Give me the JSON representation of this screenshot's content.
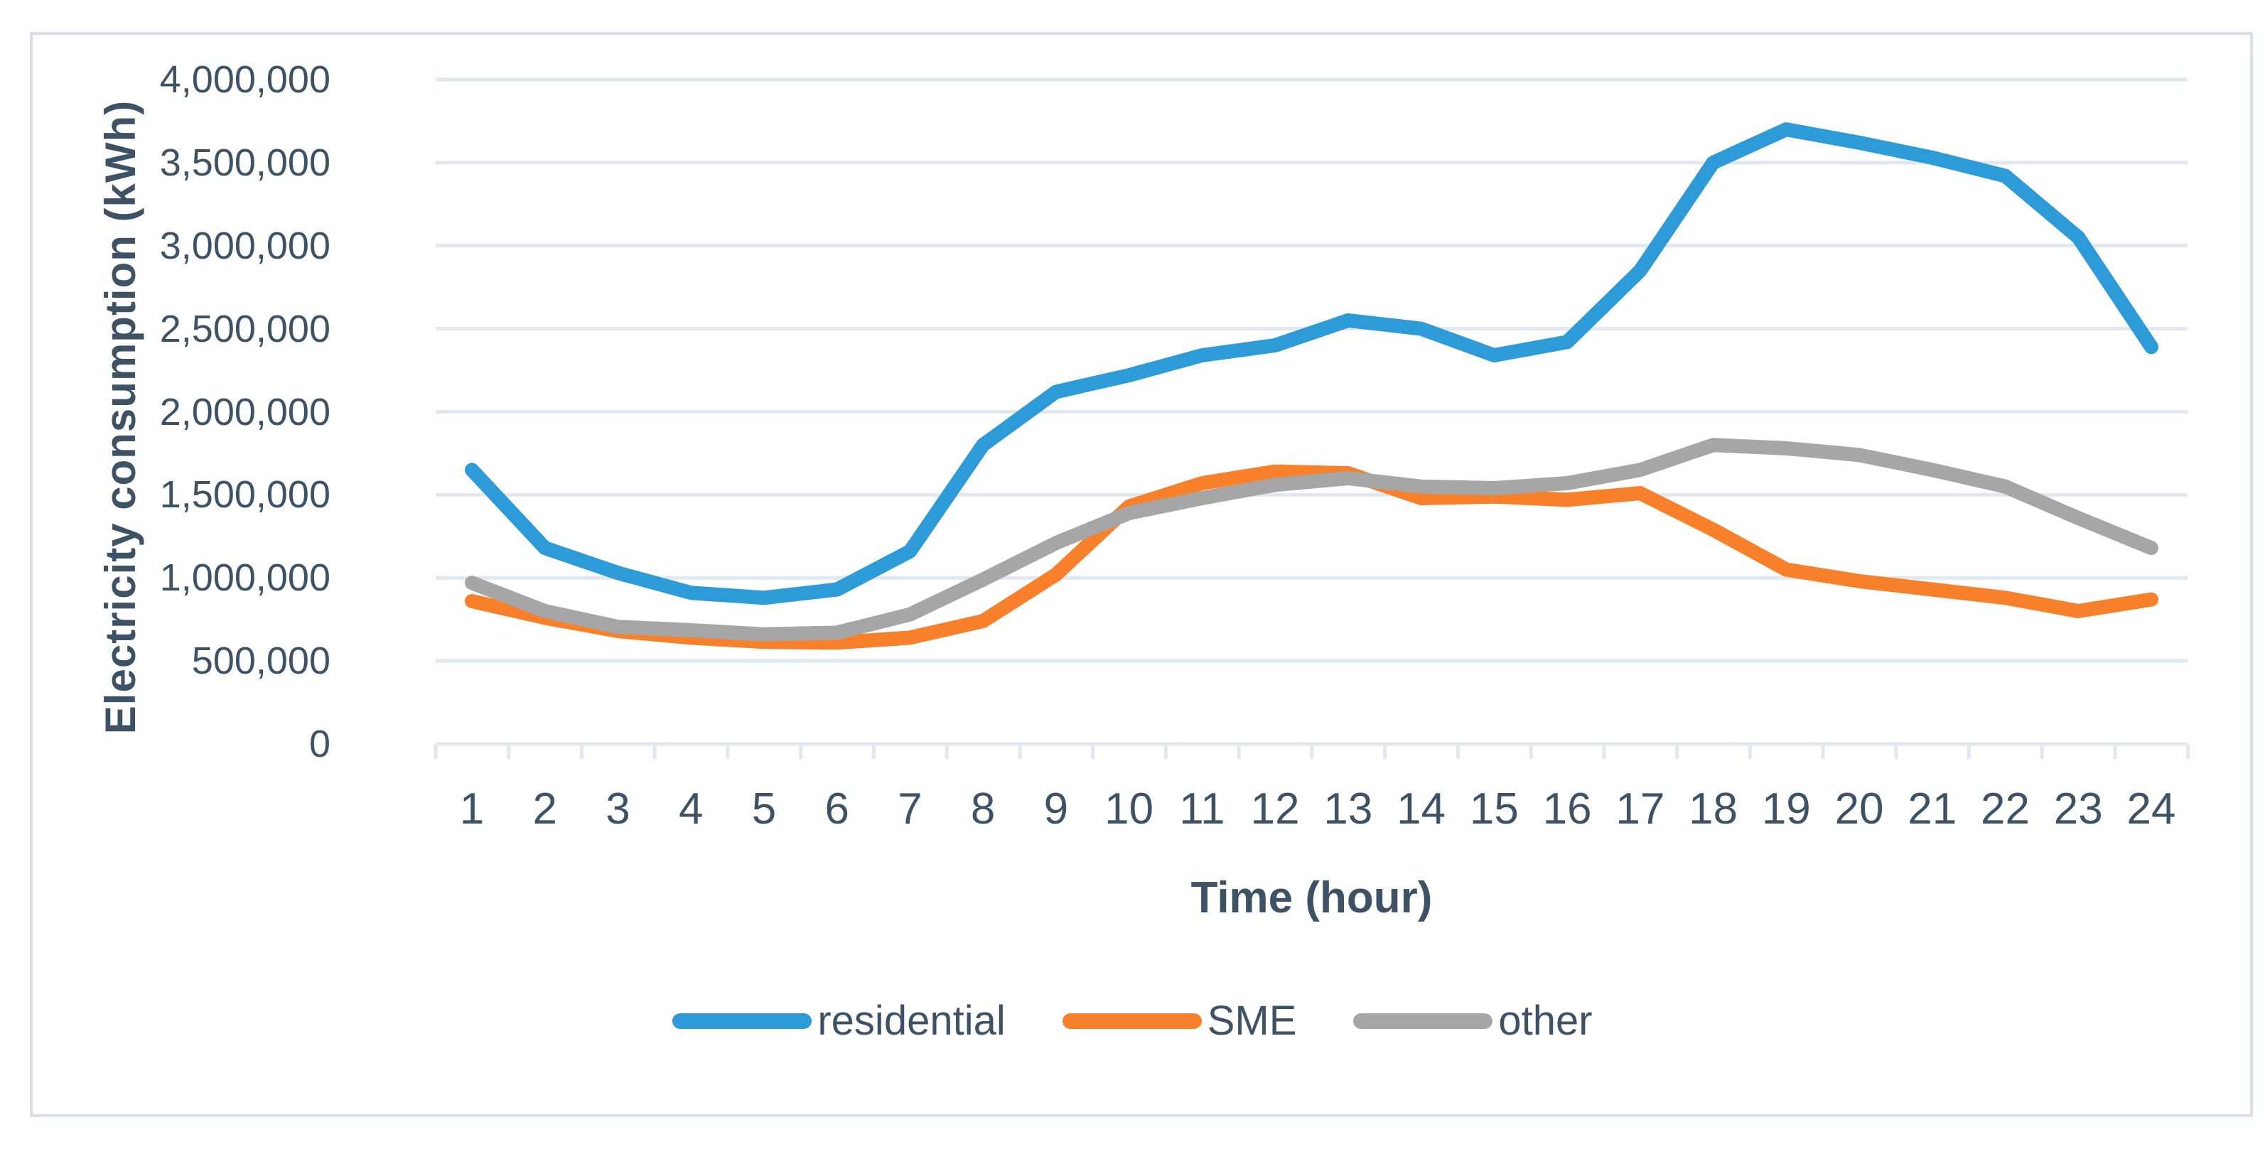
{
  "chart_data": {
    "type": "line",
    "title": "",
    "xlabel": "Time (hour)",
    "ylabel": "Electricity consumption (kWh)",
    "x": [
      1,
      2,
      3,
      4,
      5,
      6,
      7,
      8,
      9,
      10,
      11,
      12,
      13,
      14,
      15,
      16,
      17,
      18,
      19,
      20,
      21,
      22,
      23,
      24
    ],
    "x_tick_labels": [
      "1",
      "2",
      "3",
      "4",
      "5",
      "6",
      "7",
      "8",
      "9",
      "10",
      "11",
      "12",
      "13",
      "14",
      "15",
      "16",
      "17",
      "18",
      "19",
      "20",
      "21",
      "22",
      "23",
      "24"
    ],
    "series": [
      {
        "name": "residential",
        "color": "#2D9BD8",
        "values": [
          1650000,
          1180000,
          1030000,
          910000,
          880000,
          930000,
          1160000,
          1800000,
          2120000,
          2220000,
          2340000,
          2400000,
          2550000,
          2500000,
          2340000,
          2420000,
          2850000,
          3500000,
          3700000,
          3620000,
          3530000,
          3420000,
          3050000,
          2390000
        ]
      },
      {
        "name": "SME",
        "color": "#F8802B",
        "values": [
          860000,
          760000,
          680000,
          640000,
          615000,
          610000,
          640000,
          740000,
          1020000,
          1430000,
          1570000,
          1640000,
          1630000,
          1480000,
          1490000,
          1470000,
          1510000,
          1290000,
          1050000,
          980000,
          930000,
          880000,
          800000,
          870000
        ]
      },
      {
        "name": "other",
        "color": "#A6A6A6",
        "values": [
          970000,
          800000,
          705000,
          685000,
          660000,
          670000,
          780000,
          990000,
          1210000,
          1390000,
          1480000,
          1560000,
          1600000,
          1550000,
          1540000,
          1570000,
          1650000,
          1800000,
          1780000,
          1740000,
          1650000,
          1550000,
          1360000,
          1180000
        ]
      }
    ],
    "ylim": [
      0,
      4000000
    ],
    "ytick_step": 500000,
    "ytick_labels": [
      "0",
      "500,000",
      "1,000,000",
      "1,500,000",
      "2,000,000",
      "2,500,000",
      "3,000,000",
      "3,500,000",
      "4,000,000"
    ],
    "grid": "horizontal",
    "legend_position": "bottom"
  },
  "style": {
    "text_color": "#3E5266",
    "gridline_color": "#E2E8F0",
    "axis_color": "#D9E0EA",
    "series_stroke_width": 20
  }
}
